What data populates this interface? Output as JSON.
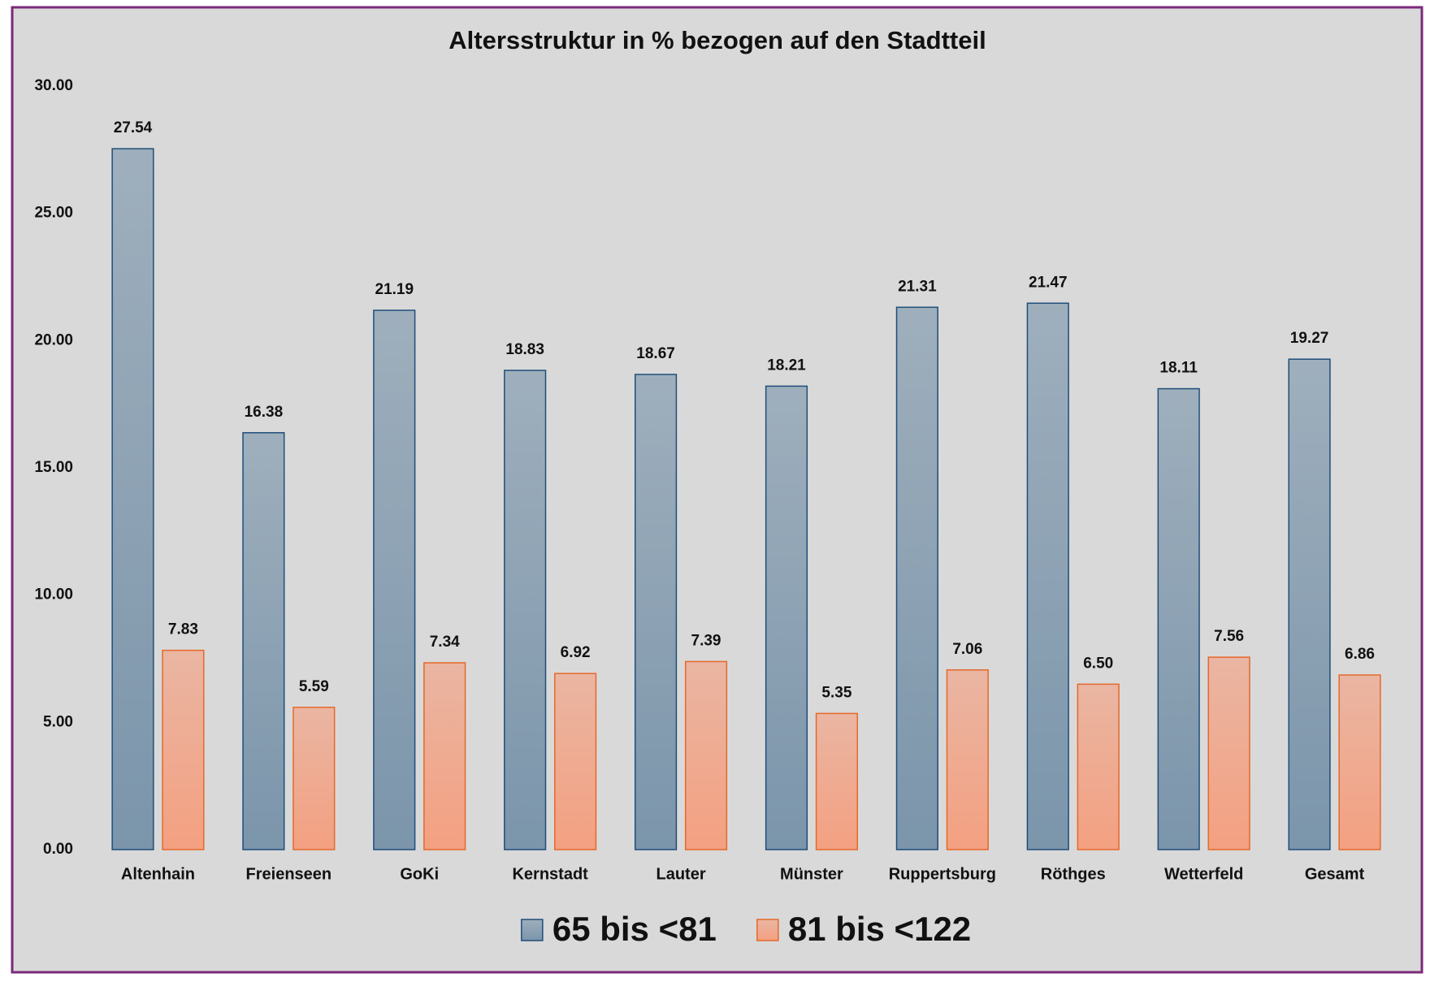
{
  "chart_data": {
    "type": "bar",
    "title": "Altersstruktur in % bezogen auf den Stadtteil",
    "categories": [
      "Altenhain",
      "Freienseen",
      "GoKi",
      "Kernstadt",
      "Lauter",
      "Münster",
      "Ruppertsburg",
      "Röthges",
      "Wetterfeld",
      "Gesamt"
    ],
    "series": [
      {
        "name": "65 bis <81",
        "color": "#7b95ab",
        "values": [
          27.54,
          16.38,
          21.19,
          18.83,
          18.67,
          18.21,
          21.31,
          21.47,
          18.11,
          19.27
        ],
        "value_labels": [
          "27.54",
          "16.38",
          "21.19",
          "18.83",
          "18.67",
          "18.21",
          "21.31",
          "21.47",
          "18.11",
          "19.27"
        ]
      },
      {
        "name": "81 bis <122",
        "color": "#f4a081",
        "values": [
          7.83,
          5.59,
          7.34,
          6.92,
          7.39,
          5.35,
          7.06,
          6.5,
          7.56,
          6.86
        ],
        "value_labels": [
          "7.83",
          "5.59",
          "7.34",
          "6.92",
          "7.39",
          "5.35",
          "7.06",
          "6.50",
          "7.56",
          "6.86"
        ]
      }
    ],
    "ylim": [
      0,
      30
    ],
    "yticks": [
      {
        "value": 0,
        "label": "0.00"
      },
      {
        "value": 5,
        "label": "5.00"
      },
      {
        "value": 10,
        "label": "10.00"
      },
      {
        "value": 15,
        "label": "15.00"
      },
      {
        "value": 20,
        "label": "20.00"
      },
      {
        "value": 25,
        "label": "25.00"
      },
      {
        "value": 30,
        "label": "30.00"
      }
    ],
    "grid": false,
    "legend": "bottom"
  }
}
